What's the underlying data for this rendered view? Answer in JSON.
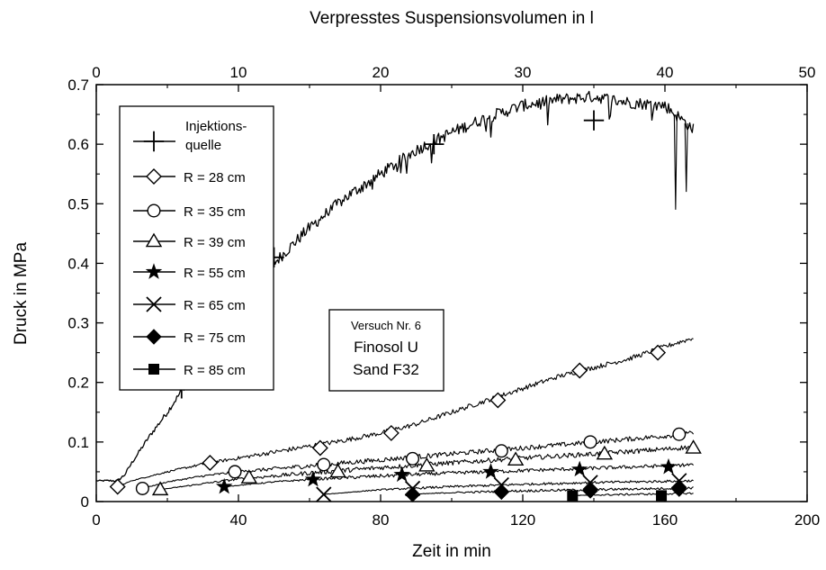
{
  "chart_data": {
    "type": "line",
    "title": "",
    "xlabel": "Zeit in min",
    "ylabel": "Druck in MPa",
    "x2label": "Verpresstes Suspensionsvolumen in l",
    "xlim": [
      0,
      200
    ],
    "ylim": [
      0,
      0.7
    ],
    "x2lim": [
      0,
      50
    ],
    "xticks": [
      0,
      40,
      80,
      120,
      160,
      200
    ],
    "yticks": [
      0,
      0.1,
      0.2,
      0.3,
      0.4,
      0.5,
      0.6,
      0.7
    ],
    "x2ticks": [
      0,
      10,
      20,
      30,
      40,
      50
    ],
    "xtick_labels": [
      "0",
      "40",
      "80",
      "120",
      "160",
      "200"
    ],
    "ytick_labels": [
      "0",
      "0.1",
      "0.2",
      "0.3",
      "0.4",
      "0.5",
      "0.6",
      "0.7"
    ],
    "x2tick_labels": [
      "0",
      "10",
      "20",
      "30",
      "40",
      "50"
    ],
    "grid": false,
    "legend_position": "top-left",
    "annotation": {
      "line1": "Versuch Nr. 6",
      "line2": "Finosol U",
      "line3": "Sand F32"
    },
    "series": [
      {
        "name": "Injektionsquelle",
        "marker": "plus",
        "noise": 0.01,
        "spikes": true,
        "x": [
          0,
          6,
          8,
          10,
          15,
          20,
          25,
          30,
          40,
          50,
          60,
          70,
          80,
          90,
          100,
          110,
          120,
          130,
          140,
          150,
          160,
          165,
          168
        ],
        "y": [
          0.035,
          0.035,
          0.045,
          0.065,
          0.11,
          0.15,
          0.195,
          0.235,
          0.32,
          0.4,
          0.46,
          0.51,
          0.55,
          0.59,
          0.62,
          0.645,
          0.665,
          0.675,
          0.68,
          0.67,
          0.665,
          0.64,
          0.625
        ],
        "marker_x": [
          24,
          50,
          95,
          140
        ],
        "marker_y": [
          0.19,
          0.41,
          0.6,
          0.64
        ]
      },
      {
        "name": "R = 28 cm",
        "marker": "diamond",
        "noise": 0.004,
        "spikes": false,
        "x": [
          6,
          10,
          20,
          30,
          40,
          50,
          60,
          70,
          80,
          90,
          100,
          110,
          120,
          130,
          140,
          150,
          160,
          168
        ],
        "y": [
          0.025,
          0.035,
          0.05,
          0.063,
          0.073,
          0.083,
          0.093,
          0.103,
          0.115,
          0.13,
          0.15,
          0.17,
          0.19,
          0.21,
          0.225,
          0.24,
          0.26,
          0.275
        ],
        "marker_x": [
          6,
          32,
          63,
          83,
          113,
          136,
          158
        ],
        "marker_y": [
          0.025,
          0.065,
          0.09,
          0.115,
          0.17,
          0.22,
          0.25
        ]
      },
      {
        "name": "R = 35 cm",
        "marker": "circle",
        "noise": 0.004,
        "spikes": false,
        "x": [
          13,
          20,
          30,
          40,
          60,
          80,
          100,
          120,
          140,
          160,
          168
        ],
        "y": [
          0.022,
          0.033,
          0.043,
          0.05,
          0.06,
          0.07,
          0.08,
          0.09,
          0.1,
          0.11,
          0.115
        ],
        "marker_x": [
          13,
          39,
          64,
          89,
          114,
          139,
          164
        ],
        "marker_y": [
          0.022,
          0.05,
          0.062,
          0.072,
          0.085,
          0.1,
          0.113
        ]
      },
      {
        "name": "R = 39 cm",
        "marker": "triangle",
        "noise": 0.004,
        "spikes": false,
        "x": [
          18,
          30,
          40,
          60,
          80,
          100,
          120,
          140,
          160,
          168
        ],
        "y": [
          0.02,
          0.03,
          0.038,
          0.048,
          0.057,
          0.065,
          0.073,
          0.08,
          0.088,
          0.092
        ],
        "marker_x": [
          18,
          43,
          68,
          93,
          118,
          143,
          168
        ],
        "marker_y": [
          0.02,
          0.04,
          0.05,
          0.06,
          0.07,
          0.08,
          0.09
        ]
      },
      {
        "name": "R = 55 cm",
        "marker": "star",
        "noise": 0.003,
        "spikes": false,
        "x": [
          36,
          50,
          60,
          80,
          100,
          120,
          140,
          160,
          168
        ],
        "y": [
          0.025,
          0.033,
          0.037,
          0.043,
          0.048,
          0.052,
          0.056,
          0.06,
          0.062
        ],
        "marker_x": [
          36,
          61,
          86,
          111,
          136,
          161
        ],
        "marker_y": [
          0.025,
          0.037,
          0.045,
          0.05,
          0.054,
          0.058
        ]
      },
      {
        "name": "R = 65 cm",
        "marker": "x",
        "noise": 0.002,
        "spikes": false,
        "x": [
          64,
          80,
          100,
          120,
          140,
          160,
          168
        ],
        "y": [
          0.012,
          0.02,
          0.025,
          0.029,
          0.032,
          0.034,
          0.035
        ],
        "marker_x": [
          64,
          89,
          114,
          139,
          164
        ],
        "marker_y": [
          0.012,
          0.022,
          0.028,
          0.032,
          0.035
        ]
      },
      {
        "name": "R = 75 cm",
        "marker": "filled-diamond",
        "noise": 0.002,
        "spikes": false,
        "x": [
          88,
          100,
          120,
          140,
          160,
          168
        ],
        "y": [
          0.012,
          0.015,
          0.018,
          0.02,
          0.022,
          0.023
        ],
        "marker_x": [
          89,
          114,
          139,
          164
        ],
        "marker_y": [
          0.012,
          0.016,
          0.018,
          0.021
        ]
      },
      {
        "name": "R = 85 cm",
        "marker": "filled-square",
        "noise": 0.0015,
        "spikes": false,
        "x": [
          134,
          140,
          150,
          160,
          168
        ],
        "y": [
          0.01,
          0.011,
          0.012,
          0.013,
          0.014
        ],
        "marker_x": [
          134,
          159
        ],
        "marker_y": [
          0.01,
          0.01
        ]
      }
    ]
  }
}
